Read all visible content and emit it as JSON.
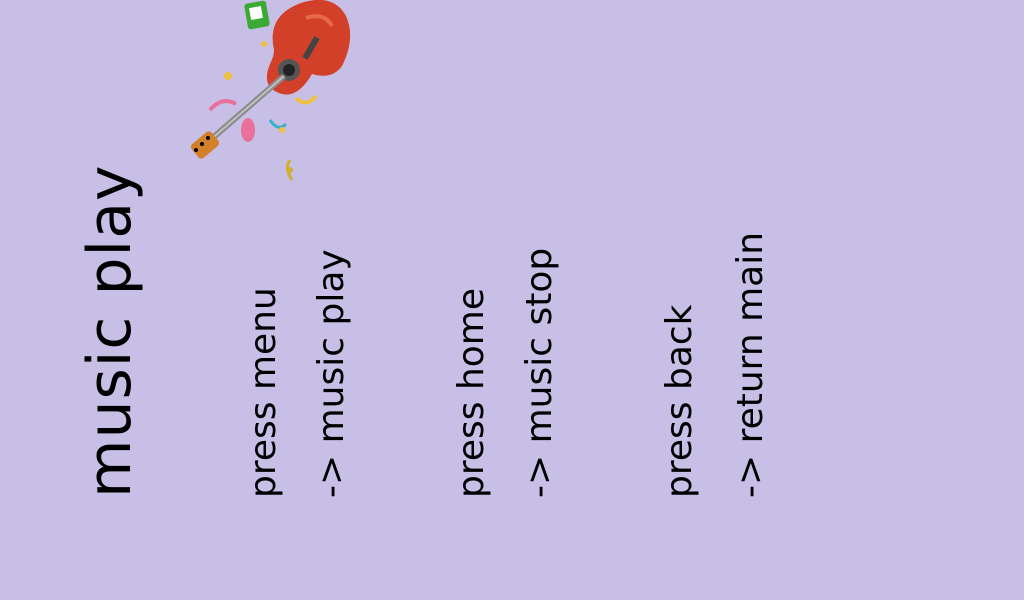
{
  "screen": {
    "title": "music play",
    "instructions": [
      "press menu",
      "-> music play",
      "press home",
      "-> music stop",
      "press back",
      "-> return main"
    ]
  },
  "illustration": {
    "icon": "guitar-icon",
    "colors": {
      "body": "#d2402a",
      "neck": "#8a8a8a",
      "background": "#c8bfe7"
    }
  }
}
